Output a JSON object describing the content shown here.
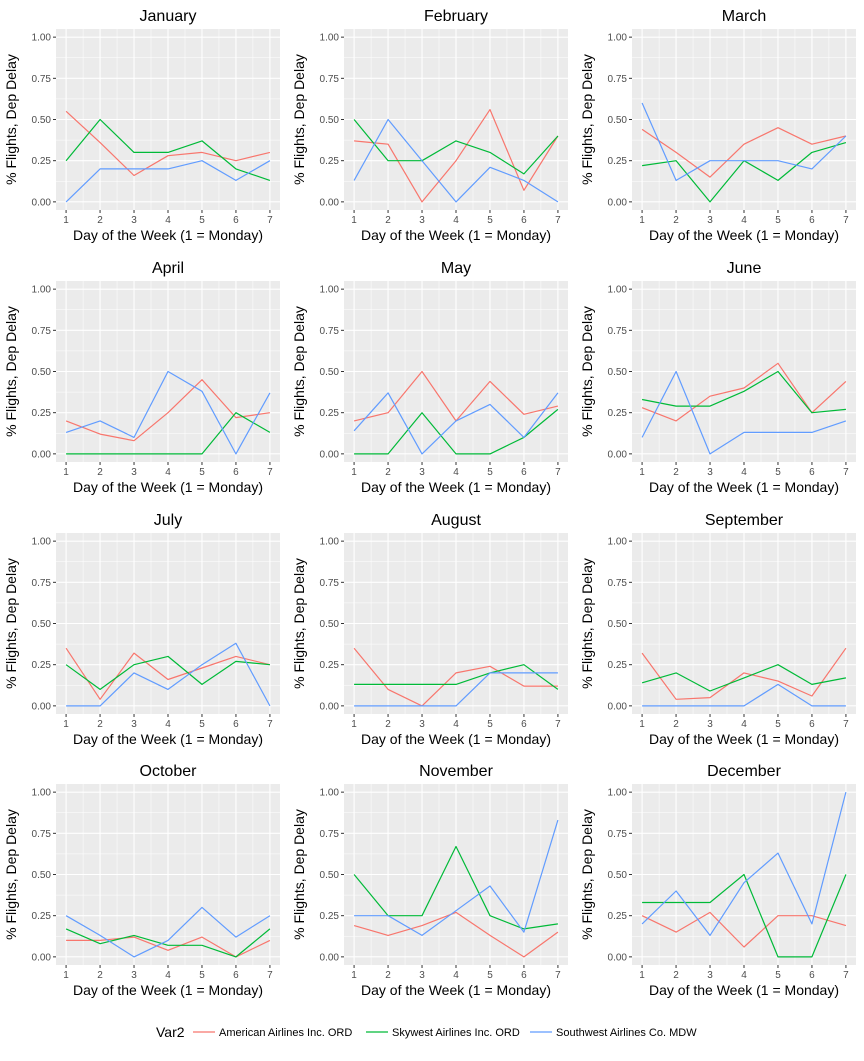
{
  "figure": {
    "legend": {
      "title": "Var2",
      "entries": [
        {
          "label": "American Airlines Inc. ORD",
          "color": "#F8766D"
        },
        {
          "label": "Skywest Airlines Inc. ORD",
          "color": "#00BA38"
        },
        {
          "label": "Southwest Airlines Co. MDW",
          "color": "#619CFF"
        }
      ]
    },
    "panel_bg": "#EBEBEB",
    "grid_color": "#FFFFFF"
  },
  "chart_data": [
    {
      "type": "line",
      "title": "January",
      "xlabel": "Day of the Week (1 = Monday)",
      "ylabel": "% Flights, Dep Delay",
      "x": [
        1,
        2,
        3,
        4,
        5,
        6,
        7
      ],
      "ylim": [
        0,
        1
      ],
      "yticks": [
        "0.00",
        "0.25",
        "0.50",
        "0.75",
        "1.00"
      ],
      "xticks": [
        "1",
        "2",
        "3",
        "4",
        "5",
        "6",
        "7"
      ],
      "series": [
        {
          "name": "American Airlines Inc. ORD",
          "values": [
            0.55,
            0.36,
            0.16,
            0.28,
            0.3,
            0.25,
            0.3
          ]
        },
        {
          "name": "Skywest Airlines Inc. ORD",
          "values": [
            0.25,
            0.5,
            0.3,
            0.3,
            0.37,
            0.2,
            0.13
          ]
        },
        {
          "name": "Southwest Airlines Co. MDW",
          "values": [
            0.0,
            0.2,
            0.2,
            0.2,
            0.25,
            0.13,
            0.25
          ]
        }
      ]
    },
    {
      "type": "line",
      "title": "February",
      "xlabel": "Day of the Week (1 = Monday)",
      "ylabel": "% Flights, Dep Delay",
      "x": [
        1,
        2,
        3,
        4,
        5,
        6,
        7
      ],
      "ylim": [
        0,
        1
      ],
      "yticks": [
        "0.00",
        "0.25",
        "0.50",
        "0.75",
        "1.00"
      ],
      "xticks": [
        "1",
        "2",
        "3",
        "4",
        "5",
        "6",
        "7"
      ],
      "series": [
        {
          "name": "American Airlines Inc. ORD",
          "values": [
            0.37,
            0.35,
            0.0,
            0.25,
            0.56,
            0.07,
            0.4
          ]
        },
        {
          "name": "Skywest Airlines Inc. ORD",
          "values": [
            0.5,
            0.25,
            0.25,
            0.37,
            0.3,
            0.17,
            0.4
          ]
        },
        {
          "name": "Southwest Airlines Co. MDW",
          "values": [
            0.13,
            0.5,
            0.25,
            0.0,
            0.21,
            0.13,
            0.0
          ]
        }
      ]
    },
    {
      "type": "line",
      "title": "March",
      "xlabel": "Day of the Week (1 = Monday)",
      "ylabel": "% Flights, Dep Delay",
      "x": [
        1,
        2,
        3,
        4,
        5,
        6,
        7
      ],
      "ylim": [
        0,
        1
      ],
      "yticks": [
        "0.00",
        "0.25",
        "0.50",
        "0.75",
        "1.00"
      ],
      "xticks": [
        "1",
        "2",
        "3",
        "4",
        "5",
        "6",
        "7"
      ],
      "series": [
        {
          "name": "American Airlines Inc. ORD",
          "values": [
            0.44,
            0.3,
            0.15,
            0.35,
            0.45,
            0.35,
            0.4
          ]
        },
        {
          "name": "Skywest Airlines Inc. ORD",
          "values": [
            0.22,
            0.25,
            0.0,
            0.25,
            0.13,
            0.3,
            0.36
          ]
        },
        {
          "name": "Southwest Airlines Co. MDW",
          "values": [
            0.6,
            0.13,
            0.25,
            0.25,
            0.25,
            0.2,
            0.4
          ]
        }
      ]
    },
    {
      "type": "line",
      "title": "April",
      "xlabel": "Day of the Week (1 = Monday)",
      "ylabel": "% Flights, Dep Delay",
      "x": [
        1,
        2,
        3,
        4,
        5,
        6,
        7
      ],
      "ylim": [
        0,
        1
      ],
      "yticks": [
        "0.00",
        "0.25",
        "0.50",
        "0.75",
        "1.00"
      ],
      "xticks": [
        "1",
        "2",
        "3",
        "4",
        "5",
        "6",
        "7"
      ],
      "series": [
        {
          "name": "American Airlines Inc. ORD",
          "values": [
            0.2,
            0.12,
            0.08,
            0.25,
            0.45,
            0.22,
            0.25
          ]
        },
        {
          "name": "Skywest Airlines Inc. ORD",
          "values": [
            0.0,
            0.0,
            0.0,
            0.0,
            0.0,
            0.25,
            0.13
          ]
        },
        {
          "name": "Southwest Airlines Co. MDW",
          "values": [
            0.13,
            0.2,
            0.1,
            0.5,
            0.38,
            0.0,
            0.37
          ]
        }
      ]
    },
    {
      "type": "line",
      "title": "May",
      "xlabel": "Day of the Week (1 = Monday)",
      "ylabel": "% Flights, Dep Delay",
      "x": [
        1,
        2,
        3,
        4,
        5,
        6,
        7
      ],
      "ylim": [
        0,
        1
      ],
      "yticks": [
        "0.00",
        "0.25",
        "0.50",
        "0.75",
        "1.00"
      ],
      "xticks": [
        "1",
        "2",
        "3",
        "4",
        "5",
        "6",
        "7"
      ],
      "series": [
        {
          "name": "American Airlines Inc. ORD",
          "values": [
            0.2,
            0.25,
            0.5,
            0.2,
            0.44,
            0.24,
            0.29
          ]
        },
        {
          "name": "Skywest Airlines Inc. ORD",
          "values": [
            0.0,
            0.0,
            0.25,
            0.0,
            0.0,
            0.1,
            0.27
          ]
        },
        {
          "name": "Southwest Airlines Co. MDW",
          "values": [
            0.14,
            0.37,
            0.0,
            0.2,
            0.3,
            0.1,
            0.37
          ]
        }
      ]
    },
    {
      "type": "line",
      "title": "June",
      "xlabel": "Day of the Week (1 = Monday)",
      "ylabel": "% Flights, Dep Delay",
      "x": [
        1,
        2,
        3,
        4,
        5,
        6,
        7
      ],
      "ylim": [
        0,
        1
      ],
      "yticks": [
        "0.00",
        "0.25",
        "0.50",
        "0.75",
        "1.00"
      ],
      "xticks": [
        "1",
        "2",
        "3",
        "4",
        "5",
        "6",
        "7"
      ],
      "series": [
        {
          "name": "American Airlines Inc. ORD",
          "values": [
            0.28,
            0.2,
            0.35,
            0.4,
            0.55,
            0.25,
            0.44
          ]
        },
        {
          "name": "Skywest Airlines Inc. ORD",
          "values": [
            0.33,
            0.29,
            0.29,
            0.38,
            0.5,
            0.25,
            0.27
          ]
        },
        {
          "name": "Southwest Airlines Co. MDW",
          "values": [
            0.1,
            0.5,
            0.0,
            0.13,
            0.13,
            0.13,
            0.2
          ]
        }
      ]
    },
    {
      "type": "line",
      "title": "July",
      "xlabel": "Day of the Week (1 = Monday)",
      "ylabel": "% Flights, Dep Delay",
      "x": [
        1,
        2,
        3,
        4,
        5,
        6,
        7
      ],
      "ylim": [
        0,
        1
      ],
      "yticks": [
        "0.00",
        "0.25",
        "0.50",
        "0.75",
        "1.00"
      ],
      "xticks": [
        "1",
        "2",
        "3",
        "4",
        "5",
        "6",
        "7"
      ],
      "series": [
        {
          "name": "American Airlines Inc. ORD",
          "values": [
            0.35,
            0.04,
            0.32,
            0.16,
            0.23,
            0.3,
            0.25
          ]
        },
        {
          "name": "Skywest Airlines Inc. ORD",
          "values": [
            0.25,
            0.1,
            0.25,
            0.3,
            0.13,
            0.27,
            0.25
          ]
        },
        {
          "name": "Southwest Airlines Co. MDW",
          "values": [
            0.0,
            0.0,
            0.2,
            0.1,
            0.25,
            0.38,
            0.0
          ]
        }
      ]
    },
    {
      "type": "line",
      "title": "August",
      "xlabel": "Day of the Week (1 = Monday)",
      "ylabel": "% Flights, Dep Delay",
      "x": [
        1,
        2,
        3,
        4,
        5,
        6,
        7
      ],
      "ylim": [
        0,
        1
      ],
      "yticks": [
        "0.00",
        "0.25",
        "0.50",
        "0.75",
        "1.00"
      ],
      "xticks": [
        "1",
        "2",
        "3",
        "4",
        "5",
        "6",
        "7"
      ],
      "series": [
        {
          "name": "American Airlines Inc. ORD",
          "values": [
            0.35,
            0.1,
            0.0,
            0.2,
            0.24,
            0.12,
            0.12
          ]
        },
        {
          "name": "Skywest Airlines Inc. ORD",
          "values": [
            0.13,
            0.13,
            0.13,
            0.13,
            0.2,
            0.25,
            0.1
          ]
        },
        {
          "name": "Southwest Airlines Co. MDW",
          "values": [
            0.0,
            0.0,
            0.0,
            0.0,
            0.2,
            0.2,
            0.2
          ]
        }
      ]
    },
    {
      "type": "line",
      "title": "September",
      "xlabel": "Day of the Week (1 = Monday)",
      "ylabel": "% Flights, Dep Delay",
      "x": [
        1,
        2,
        3,
        4,
        5,
        6,
        7
      ],
      "ylim": [
        0,
        1
      ],
      "yticks": [
        "0.00",
        "0.25",
        "0.50",
        "0.75",
        "1.00"
      ],
      "xticks": [
        "1",
        "2",
        "3",
        "4",
        "5",
        "6",
        "7"
      ],
      "series": [
        {
          "name": "American Airlines Inc. ORD",
          "values": [
            0.32,
            0.04,
            0.05,
            0.2,
            0.15,
            0.06,
            0.35
          ]
        },
        {
          "name": "Skywest Airlines Inc. ORD",
          "values": [
            0.14,
            0.2,
            0.09,
            0.17,
            0.25,
            0.13,
            0.17
          ]
        },
        {
          "name": "Southwest Airlines Co. MDW",
          "values": [
            0.0,
            0.0,
            0.0,
            0.0,
            0.13,
            0.0,
            0.0
          ]
        }
      ]
    },
    {
      "type": "line",
      "title": "October",
      "xlabel": "Day of the Week (1 = Monday)",
      "ylabel": "% Flights, Dep Delay",
      "x": [
        1,
        2,
        3,
        4,
        5,
        6,
        7
      ],
      "ylim": [
        0,
        1
      ],
      "yticks": [
        "0.00",
        "0.25",
        "0.50",
        "0.75",
        "1.00"
      ],
      "xticks": [
        "1",
        "2",
        "3",
        "4",
        "5",
        "6",
        "7"
      ],
      "series": [
        {
          "name": "American Airlines Inc. ORD",
          "values": [
            0.1,
            0.1,
            0.12,
            0.04,
            0.12,
            0.0,
            0.1
          ]
        },
        {
          "name": "Skywest Airlines Inc. ORD",
          "values": [
            0.17,
            0.08,
            0.13,
            0.07,
            0.07,
            0.0,
            0.17
          ]
        },
        {
          "name": "Southwest Airlines Co. MDW",
          "values": [
            0.25,
            0.13,
            0.0,
            0.1,
            0.3,
            0.12,
            0.25
          ]
        }
      ]
    },
    {
      "type": "line",
      "title": "November",
      "xlabel": "Day of the Week (1 = Monday)",
      "ylabel": "% Flights, Dep Delay",
      "x": [
        1,
        2,
        3,
        4,
        5,
        6,
        7
      ],
      "ylim": [
        0,
        1
      ],
      "yticks": [
        "0.00",
        "0.25",
        "0.50",
        "0.75",
        "1.00"
      ],
      "xticks": [
        "1",
        "2",
        "3",
        "4",
        "5",
        "6",
        "7"
      ],
      "series": [
        {
          "name": "American Airlines Inc. ORD",
          "values": [
            0.19,
            0.13,
            0.19,
            0.27,
            0.13,
            0.0,
            0.15
          ]
        },
        {
          "name": "Skywest Airlines Inc. ORD",
          "values": [
            0.5,
            0.25,
            0.25,
            0.67,
            0.25,
            0.17,
            0.2
          ]
        },
        {
          "name": "Southwest Airlines Co. MDW",
          "values": [
            0.25,
            0.25,
            0.13,
            0.28,
            0.43,
            0.15,
            0.83
          ]
        }
      ]
    },
    {
      "type": "line",
      "title": "December",
      "xlabel": "Day of the Week (1 = Monday)",
      "ylabel": "% Flights, Dep Delay",
      "x": [
        1,
        2,
        3,
        4,
        5,
        6,
        7
      ],
      "ylim": [
        0,
        1
      ],
      "yticks": [
        "0.00",
        "0.25",
        "0.50",
        "0.75",
        "1.00"
      ],
      "xticks": [
        "1",
        "2",
        "3",
        "4",
        "5",
        "6",
        "7"
      ],
      "series": [
        {
          "name": "American Airlines Inc. ORD",
          "values": [
            0.25,
            0.15,
            0.27,
            0.06,
            0.25,
            0.25,
            0.19
          ]
        },
        {
          "name": "Skywest Airlines Inc. ORD",
          "values": [
            0.33,
            0.33,
            0.33,
            0.5,
            0.0,
            0.0,
            0.5
          ]
        },
        {
          "name": "Southwest Airlines Co. MDW",
          "values": [
            0.2,
            0.4,
            0.13,
            0.45,
            0.63,
            0.2,
            1.0
          ]
        }
      ]
    }
  ]
}
